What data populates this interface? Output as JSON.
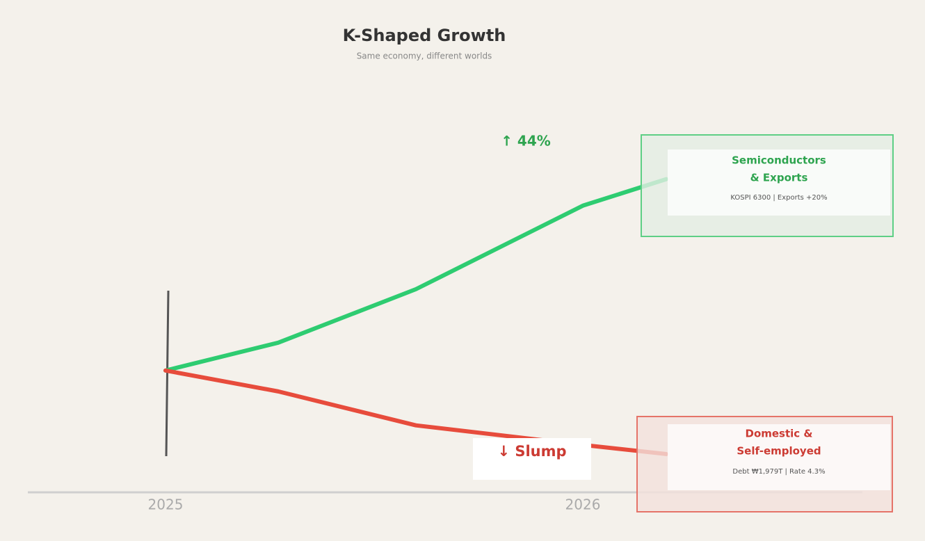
{
  "chart_data": {
    "type": "line",
    "title": "K-Shaped Growth",
    "subtitle": "Same economy, different worlds",
    "x": [
      2025,
      2025.27,
      2025.6,
      2026,
      2026.2
    ],
    "xlim": [
      2024.67,
      2026.67
    ],
    "xticks": [
      2025,
      2026
    ],
    "ylim": [
      72,
      166
    ],
    "series": [
      {
        "color": "#2ecc71",
        "values": [
          100,
          106.4,
          118.7,
          137.9,
          144
        ]
      },
      {
        "color": "#e74c3c",
        "values": [
          100,
          95.2,
          87.4,
          82.9,
          80.8
        ]
      }
    ],
    "annotations": [
      "↑ 44%",
      "↓ Slump"
    ],
    "callouts": [
      {
        "title": [
          "Semiconductors",
          "& Exports"
        ],
        "detail": "KOSPI 6300 | Exports +20%"
      },
      {
        "title": [
          "Domestic &",
          "Self-employed"
        ],
        "detail": "Debt ₩1,979T | Rate 4.3%"
      }
    ]
  }
}
